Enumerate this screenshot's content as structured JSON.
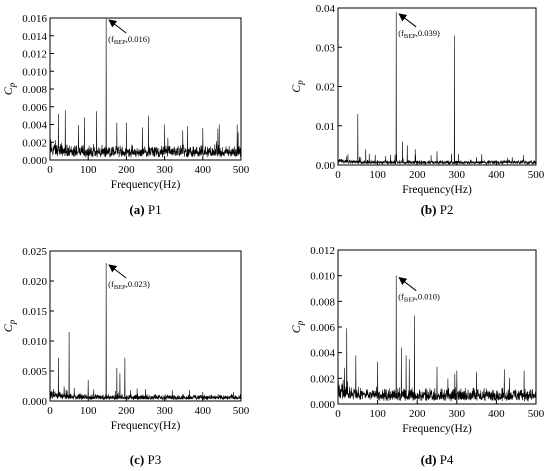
{
  "chart_data": [
    {
      "type": "line",
      "panel_id": "a",
      "caption_letter": "(a)",
      "caption_text": "P1",
      "xlabel": "Frequency(Hz)",
      "ylabel_main": "C",
      "ylabel_sub": "p",
      "xlim": [
        0,
        500
      ],
      "ylim": [
        0,
        0.016
      ],
      "xticks": [
        0,
        100,
        200,
        300,
        400,
        500
      ],
      "yticks": [
        "0.000",
        "0.002",
        "0.004",
        "0.006",
        "0.008",
        "0.010",
        "0.012",
        "0.014",
        "0.016"
      ],
      "annotation": {
        "prefix": "(f",
        "sub": "BEP",
        "suffix": ",0.016)",
        "x": 147,
        "y": 0.016
      },
      "series": [
        {
          "noise_level": 0.0012,
          "noise_decay": 0.0008,
          "peaks": [
            [
              147,
              0.016
            ],
            [
              22,
              0.0052
            ],
            [
              40,
              0.0056
            ],
            [
              90,
              0.0048
            ],
            [
              122,
              0.0055
            ],
            [
              175,
              0.0042
            ],
            [
              200,
              0.0042
            ],
            [
              258,
              0.005
            ],
            [
              300,
              0.004
            ],
            [
              360,
              0.0038
            ],
            [
              400,
              0.0036
            ],
            [
              443,
              0.004
            ],
            [
              490,
              0.004
            ]
          ]
        }
      ]
    },
    {
      "type": "line",
      "panel_id": "b",
      "caption_letter": "(b)",
      "caption_text": "P2",
      "xlabel": "Frequency(Hz)",
      "ylabel_main": "C",
      "ylabel_sub": "p",
      "xlim": [
        0,
        500
      ],
      "ylim": [
        0,
        0.04
      ],
      "xticks": [
        0,
        100,
        200,
        300,
        400,
        500
      ],
      "yticks": [
        "0.00",
        "0.01",
        "0.02",
        "0.03",
        "0.04"
      ],
      "annotation": {
        "prefix": "(f",
        "sub": "BEP",
        "suffix": ",0.039)",
        "x": 147,
        "y": 0.039
      },
      "series": [
        {
          "noise_level": 0.0009,
          "noise_decay": 0.0006,
          "peaks": [
            [
              147,
              0.039
            ],
            [
              294,
              0.033
            ],
            [
              50,
              0.013
            ],
            [
              70,
              0.004
            ],
            [
              163,
              0.006
            ],
            [
              175,
              0.005
            ],
            [
              195,
              0.004
            ],
            [
              250,
              0.0035
            ],
            [
              350,
              0.002
            ],
            [
              440,
              0.002
            ]
          ]
        }
      ]
    },
    {
      "type": "line",
      "panel_id": "c",
      "caption_letter": "(c)",
      "caption_text": "P3",
      "xlabel": "Frequency(Hz)",
      "ylabel_main": "C",
      "ylabel_sub": "p",
      "xlim": [
        0,
        500
      ],
      "ylim": [
        0,
        0.025
      ],
      "xticks": [
        0,
        100,
        200,
        300,
        400,
        500
      ],
      "yticks": [
        "0.000",
        "0.005",
        "0.010",
        "0.015",
        "0.020",
        "0.025"
      ],
      "annotation": {
        "prefix": "(f",
        "sub": "BEP",
        "suffix": ",0.023)",
        "x": 147,
        "y": 0.023
      },
      "series": [
        {
          "noise_level": 0.0008,
          "noise_decay": 0.0012,
          "peaks": [
            [
              147,
              0.023
            ],
            [
              22,
              0.0072
            ],
            [
              50,
              0.0115
            ],
            [
              100,
              0.0035
            ],
            [
              175,
              0.0055
            ],
            [
              183,
              0.0046
            ],
            [
              196,
              0.0072
            ],
            [
              250,
              0.002
            ],
            [
              320,
              0.0018
            ],
            [
              400,
              0.0015
            ],
            [
              480,
              0.0015
            ]
          ]
        }
      ]
    },
    {
      "type": "line",
      "panel_id": "d",
      "caption_letter": "(d)",
      "caption_text": "P4",
      "xlabel": "Frequency(Hz)",
      "ylabel_main": "C",
      "ylabel_sub": "p",
      "xlim": [
        0,
        500
      ],
      "ylim": [
        0,
        0.012
      ],
      "xticks": [
        0,
        100,
        200,
        300,
        400,
        500
      ],
      "yticks": [
        "0.000",
        "0.002",
        "0.004",
        "0.006",
        "0.008",
        "0.010",
        "0.012"
      ],
      "annotation": {
        "prefix": "(f",
        "sub": "BEP",
        "suffix": ",0.010)",
        "x": 147,
        "y": 0.01
      },
      "series": [
        {
          "noise_level": 0.0009,
          "noise_decay": 0.0009,
          "peaks": [
            [
              147,
              0.01
            ],
            [
              22,
              0.0059
            ],
            [
              45,
              0.0038
            ],
            [
              100,
              0.0033
            ],
            [
              160,
              0.0044
            ],
            [
              172,
              0.0038
            ],
            [
              180,
              0.0035
            ],
            [
              193,
              0.0069
            ],
            [
              250,
              0.0029
            ],
            [
              300,
              0.0026
            ],
            [
              350,
              0.0025
            ],
            [
              420,
              0.0027
            ],
            [
              470,
              0.0026
            ]
          ]
        }
      ]
    }
  ]
}
